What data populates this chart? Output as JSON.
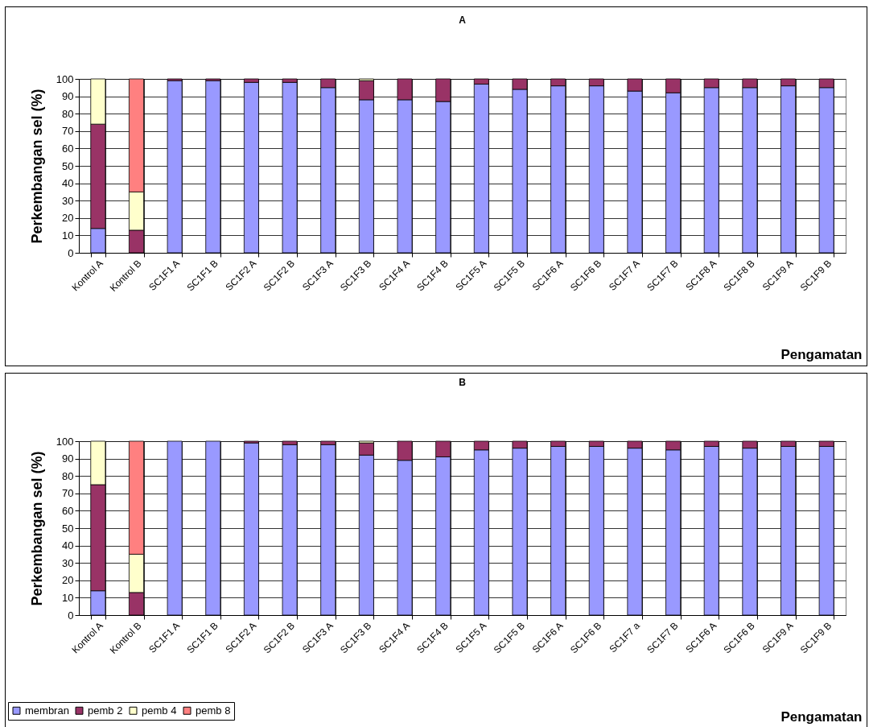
{
  "chart_data": [
    {
      "type": "bar",
      "stacked": true,
      "title": "A",
      "ylabel": "Perkembangan sel (%)",
      "xlabel": "Pengamatan",
      "categories": [
        "Kontrol A",
        "Kontrol B",
        "SC1F1 A",
        "SC1F1 B",
        "SC1F2 A",
        "SC1F2 B",
        "SC1F3 A",
        "SC1F3 B",
        "SC1F4 A",
        "SC1F4 B",
        "SC1F5 A",
        "SC1F5 B",
        "SC1F6 A",
        "SC1F6 B",
        "SC1F7 A",
        "SC1F7 B",
        "SC1F8 A",
        "SC1F8 B",
        "SC1F9 A",
        "SC1F9 B"
      ],
      "series": [
        {
          "color": "#9999ff",
          "values": [
            14,
            0,
            99,
            99,
            98,
            98,
            95,
            88,
            88,
            87,
            97,
            94,
            96,
            96,
            93,
            92,
            95,
            95,
            96,
            95
          ]
        },
        {
          "color": "#993366",
          "values": [
            60,
            13,
            1,
            1,
            2,
            2,
            5,
            11,
            12,
            13,
            3,
            6,
            4,
            4,
            7,
            8,
            5,
            5,
            4,
            5
          ]
        },
        {
          "color": "#ffffcc",
          "values": [
            26,
            22,
            null,
            null,
            null,
            null,
            null,
            1,
            null,
            null,
            null,
            null,
            null,
            null,
            null,
            null,
            null,
            null,
            null,
            null
          ]
        },
        {
          "color": "#ff8080",
          "values": [
            null,
            65,
            null,
            null,
            null,
            null,
            null,
            null,
            null,
            null,
            null,
            null,
            null,
            null,
            null,
            null,
            null,
            null,
            null,
            null
          ]
        }
      ],
      "ylim": [
        0,
        100
      ],
      "yticks": [
        0,
        10,
        20,
        30,
        40,
        50,
        60,
        70,
        80,
        90,
        100
      ],
      "grid": true,
      "legend": false
    },
    {
      "type": "bar",
      "stacked": true,
      "title": "B",
      "ylabel": "Perkembangan sel (%)",
      "xlabel": "Pengamatan",
      "categories": [
        "Kontrol A",
        "Kontrol B",
        "SC1F1 A",
        "SC1F1 B",
        "SC1F2 A",
        "SC1F2 B",
        "SC1F3 A",
        "SC1F3 B",
        "SC1F4 A",
        "SC1F4 B",
        "SC1F5 A",
        "SC1F5 B",
        "SC1F6 A",
        "SC1F6 B",
        "SC1F7 a",
        "SC1F7 B",
        "SC1F6 A",
        "SC1F6 B",
        "SC1F9 A",
        "SC1F9 B"
      ],
      "series": [
        {
          "name": "membran",
          "color": "#9999ff",
          "values": [
            14,
            0,
            100,
            100,
            99,
            98,
            98,
            92,
            89,
            91,
            95,
            96,
            97,
            97,
            96,
            95,
            97,
            96,
            97,
            97
          ]
        },
        {
          "name": "pemb 2",
          "color": "#993366",
          "values": [
            61,
            13,
            null,
            null,
            1,
            2,
            2,
            7,
            11,
            9,
            5,
            4,
            3,
            3,
            4,
            5,
            3,
            4,
            3,
            3
          ]
        },
        {
          "name": "pemb 4",
          "color": "#ffffcc",
          "values": [
            25,
            22,
            null,
            null,
            null,
            null,
            null,
            1,
            null,
            null,
            null,
            null,
            null,
            null,
            null,
            null,
            null,
            null,
            null,
            null
          ]
        },
        {
          "name": "pemb 8",
          "color": "#ff8080",
          "values": [
            null,
            65,
            null,
            null,
            null,
            null,
            null,
            null,
            null,
            null,
            null,
            null,
            null,
            null,
            null,
            null,
            null,
            null,
            null,
            null
          ]
        }
      ],
      "ylim": [
        0,
        100
      ],
      "yticks": [
        0,
        10,
        20,
        30,
        40,
        50,
        60,
        70,
        80,
        90,
        100
      ],
      "grid": true,
      "legend": "bottom left"
    }
  ]
}
